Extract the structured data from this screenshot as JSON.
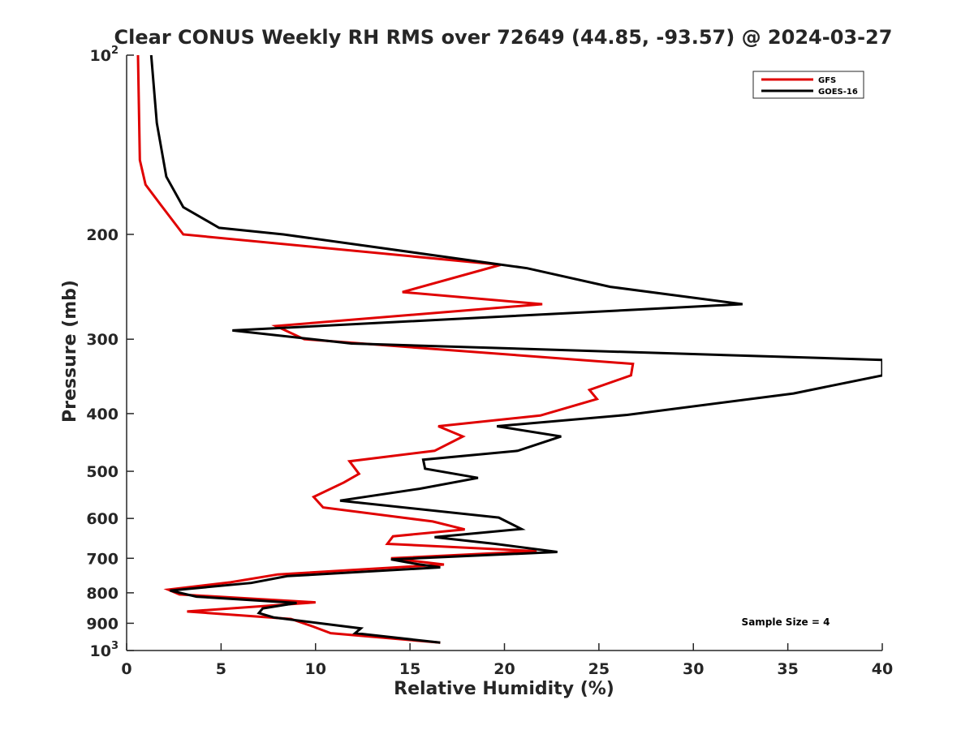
{
  "chart_data": {
    "type": "line",
    "title": "Clear CONUS Weekly RH RMS over 72649 (44.85, -93.57) @ 2024-03-27",
    "xlabel": "Relative Humidity (%)",
    "ylabel": "Pressure (mb)",
    "xlim": [
      0,
      40
    ],
    "ylim": [
      100,
      1000
    ],
    "y_scale": "log",
    "y_reversed": true,
    "grid": false,
    "legend_position": "top-right",
    "x_ticks": [
      "0",
      "5",
      "10",
      "15",
      "20",
      "25",
      "30",
      "35",
      "40"
    ],
    "y_ticks": [
      {
        "value": 100,
        "base": "10",
        "exp": "2"
      },
      {
        "value": 200,
        "base": "200",
        "exp": ""
      },
      {
        "value": 300,
        "base": "300",
        "exp": ""
      },
      {
        "value": 400,
        "base": "400",
        "exp": ""
      },
      {
        "value": 500,
        "base": "500",
        "exp": ""
      },
      {
        "value": 600,
        "base": "600",
        "exp": ""
      },
      {
        "value": 700,
        "base": "700",
        "exp": ""
      },
      {
        "value": 800,
        "base": "800",
        "exp": ""
      },
      {
        "value": 900,
        "base": "900",
        "exp": ""
      },
      {
        "value": 1000,
        "base": "10",
        "exp": "3"
      }
    ],
    "series": [
      {
        "name": "GFS",
        "color": "#e00000",
        "points": [
          [
            0.6,
            100
          ],
          [
            0.7,
            150
          ],
          [
            1.0,
            165
          ],
          [
            1.9,
            180
          ],
          [
            3.0,
            200
          ],
          [
            19.8,
            225
          ],
          [
            14.6,
            250
          ],
          [
            22.0,
            262
          ],
          [
            7.9,
            285
          ],
          [
            9.4,
            300
          ],
          [
            26.8,
            330
          ],
          [
            26.7,
            345
          ],
          [
            24.5,
            365
          ],
          [
            24.9,
            378
          ],
          [
            21.9,
            403
          ],
          [
            16.5,
            420
          ],
          [
            17.8,
            437
          ],
          [
            16.3,
            462
          ],
          [
            11.8,
            481
          ],
          [
            12.3,
            505
          ],
          [
            11.5,
            522
          ],
          [
            9.9,
            552
          ],
          [
            10.4,
            575
          ],
          [
            16.2,
            607
          ],
          [
            17.9,
            626
          ],
          [
            14.1,
            643
          ],
          [
            13.8,
            662
          ],
          [
            21.7,
            681
          ],
          [
            14.0,
            700
          ],
          [
            16.8,
            717
          ],
          [
            8.0,
            745
          ],
          [
            5.5,
            768
          ],
          [
            2.2,
            790
          ],
          [
            2.8,
            805
          ],
          [
            10.0,
            830
          ],
          [
            3.2,
            860
          ],
          [
            8.7,
            885
          ],
          [
            9.8,
            910
          ],
          [
            10.8,
            935
          ],
          [
            16.6,
            970
          ]
        ]
      },
      {
        "name": "GOES-16",
        "color": "#000000",
        "points": [
          [
            1.3,
            100
          ],
          [
            1.6,
            130
          ],
          [
            2.1,
            160
          ],
          [
            3.0,
            180
          ],
          [
            4.9,
            195
          ],
          [
            8.3,
            200
          ],
          [
            21.2,
            228
          ],
          [
            25.6,
            245
          ],
          [
            32.6,
            262
          ],
          [
            5.6,
            290
          ],
          [
            11.9,
            305
          ],
          [
            40.0,
            325
          ],
          [
            40.0,
            345
          ],
          [
            35.3,
            370
          ],
          [
            26.5,
            402
          ],
          [
            19.6,
            420
          ],
          [
            23.0,
            437
          ],
          [
            20.7,
            462
          ],
          [
            15.7,
            478
          ],
          [
            15.8,
            495
          ],
          [
            18.6,
            513
          ],
          [
            15.5,
            535
          ],
          [
            11.3,
            560
          ],
          [
            19.7,
            598
          ],
          [
            20.9,
            625
          ],
          [
            16.3,
            645
          ],
          [
            19.5,
            662
          ],
          [
            22.8,
            683
          ],
          [
            14.0,
            703
          ],
          [
            15.4,
            716
          ],
          [
            16.6,
            725
          ],
          [
            8.5,
            750
          ],
          [
            6.6,
            770
          ],
          [
            2.3,
            793
          ],
          [
            3.7,
            812
          ],
          [
            9.0,
            832
          ],
          [
            7.2,
            850
          ],
          [
            7.0,
            865
          ],
          [
            7.8,
            880
          ],
          [
            12.4,
            918
          ],
          [
            12.1,
            935
          ],
          [
            16.6,
            970
          ]
        ]
      }
    ],
    "annotation": "Sample Size = 4"
  }
}
